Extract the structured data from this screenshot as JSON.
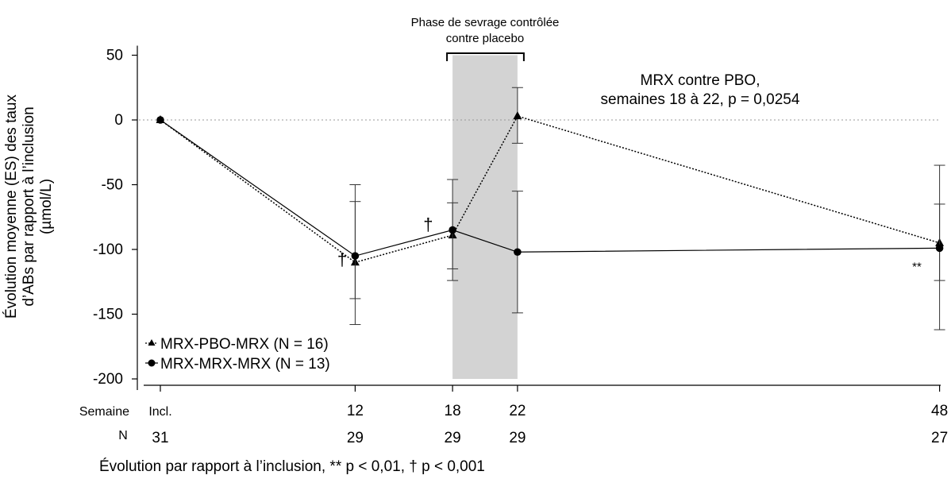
{
  "chart_data": {
    "type": "line",
    "ylabel_lines": [
      "Évolution moyenne (ES) des taux",
      "d’ABs par rapport à l’inclusion",
      "(µmol/L)"
    ],
    "ylim": [
      -200,
      50
    ],
    "yticks": [
      "50",
      "0",
      "-50",
      "-100",
      "-150",
      "-200"
    ],
    "x_label": "Semaine",
    "x_ticks": [
      {
        "week": 0,
        "label": "Incl."
      },
      {
        "week": 12,
        "label": "12"
      },
      {
        "week": 18,
        "label": "18"
      },
      {
        "week": 22,
        "label": "22"
      },
      {
        "week": 48,
        "label": "48"
      }
    ],
    "n_label": "N",
    "n_values": [
      "31",
      "29",
      "29",
      "29",
      "27"
    ],
    "shaded_region": {
      "x": [
        18,
        22
      ],
      "label_lines": [
        "Phase de sevrage contrôlée",
        "contre placebo"
      ]
    },
    "annotation_lines": [
      "MRX contre PBO,",
      "semaines 18 à 22, p = 0,0254"
    ],
    "footnote": "Évolution par rapport à l’inclusion, ** p < 0,01, † p < 0,001",
    "markers": [
      {
        "week": 11.2,
        "y": -108,
        "text": "†"
      },
      {
        "week": 16.5,
        "y": -81,
        "text": "†"
      },
      {
        "week": 46.6,
        "y": -112,
        "text": "**"
      }
    ],
    "series": [
      {
        "name": "MRX-PBO-MRX (N = 16)",
        "marker": "triangle",
        "line": "dotted",
        "x": [
          0,
          12,
          18,
          22,
          48
        ],
        "y": [
          0,
          -110,
          -89,
          3,
          -95
        ],
        "err_low": [
          0,
          -158,
          -124,
          -18,
          -162
        ],
        "err_high": [
          0,
          -50,
          -46,
          25,
          -35
        ]
      },
      {
        "name": "MRX-MRX-MRX (N = 13)",
        "marker": "circle",
        "line": "solid",
        "x": [
          0,
          12,
          18,
          22,
          48
        ],
        "y": [
          0,
          -105,
          -85,
          -102,
          -99
        ],
        "err_low": [
          0,
          -138,
          -115,
          -149,
          -124
        ],
        "err_high": [
          0,
          -63,
          -64,
          -55,
          -65
        ]
      }
    ]
  }
}
